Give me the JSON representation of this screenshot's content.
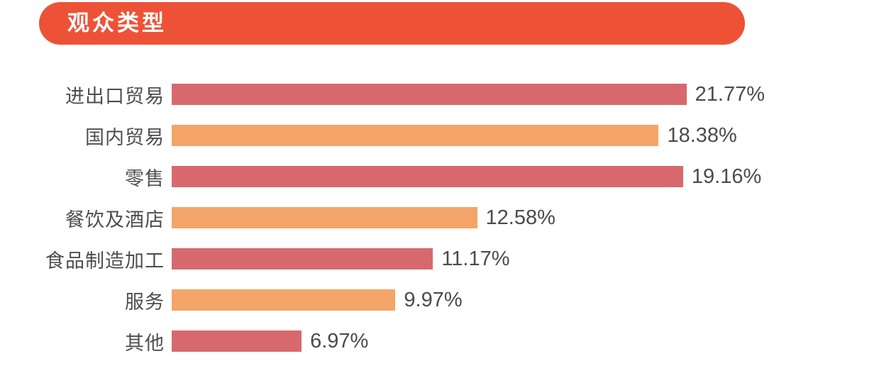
{
  "page": {
    "background": "#ffffff"
  },
  "header": {
    "title": "观众类型",
    "badge_color": "#EE5236",
    "title_text_color": "#ffffff"
  },
  "colors": {
    "bar_red": "#D7696E",
    "bar_orange": "#F4A469",
    "label_text": "#4E4E4E",
    "value_text": "#4B4B4B"
  },
  "chart_data": {
    "type": "bar",
    "orientation": "horizontal",
    "title": "观众类型",
    "categories": [
      "进出口贸易",
      "国内贸易",
      "零售",
      "餐饮及酒店",
      "食品制造加工",
      "服务",
      "其他"
    ],
    "values": [
      21.77,
      18.38,
      19.16,
      12.58,
      11.17,
      9.97,
      6.97
    ],
    "value_labels": [
      "21.77%",
      "18.38%",
      "19.16%",
      "12.58%",
      "11.17%",
      "9.97%",
      "6.97%"
    ],
    "bar_colors": [
      "#D7696E",
      "#F4A469",
      "#D7696E",
      "#F4A469",
      "#D7696E",
      "#F4A469",
      "#D7696E"
    ],
    "xlim": [
      2.82,
      21.77
    ],
    "xlabel": "",
    "ylabel": "",
    "grid": false,
    "legend": null,
    "value_label_position": "end"
  }
}
